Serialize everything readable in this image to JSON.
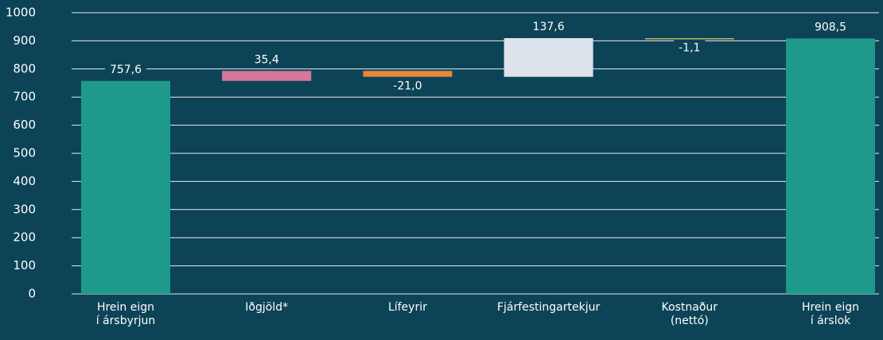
{
  "chart_data": {
    "type": "waterfall",
    "categories": [
      [
        "Hrein eign",
        "í ársbyrjun"
      ],
      [
        "Iðgjöld*"
      ],
      [
        "Lífeyrir"
      ],
      [
        "Fjárfestingartekjur"
      ],
      [
        "Kostnaður",
        "(nettó)"
      ],
      [
        "Hrein eign",
        "í árslok"
      ]
    ],
    "values": [
      757.6,
      35.4,
      -21.0,
      137.6,
      -1.1,
      908.5
    ],
    "value_labels": [
      "757,6",
      "35,4",
      "-21,0",
      "137,6",
      "-1,1",
      "908,5"
    ],
    "measure": [
      "total",
      "relative",
      "relative",
      "relative",
      "relative",
      "total"
    ],
    "colors": [
      "#1f9a8a",
      "#d4789c",
      "#e8863a",
      "#dde3ea",
      "#c8b45a",
      "#1f9a8a"
    ],
    "ylim": [
      0,
      1000
    ],
    "yticks": [
      0,
      100,
      200,
      300,
      400,
      500,
      600,
      700,
      800,
      900,
      1000
    ],
    "grid": true
  }
}
